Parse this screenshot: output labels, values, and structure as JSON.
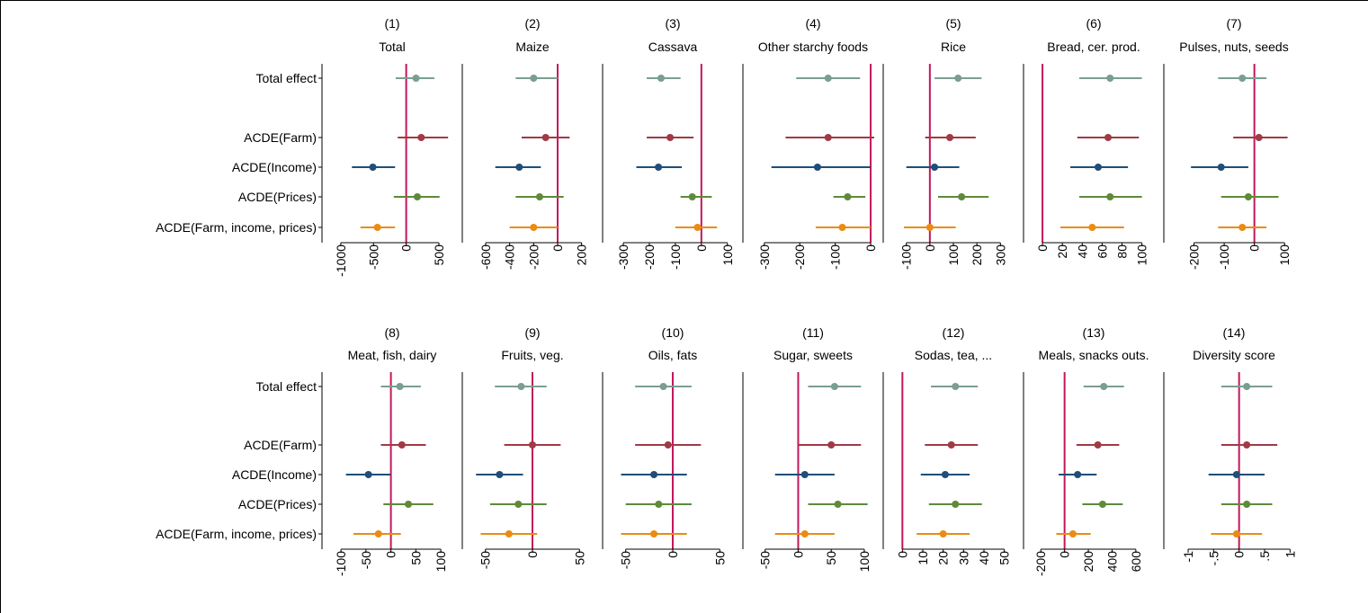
{
  "caption": "",
  "colors": {
    "zero_line": "#c2185b",
    "axis": "#000000",
    "Total effect": "#7a9e90",
    "ACDE(Farm)": "#a03a46",
    "ACDE(Income)": "#1f4e79",
    "ACDE(Prices)": "#5e8a3a",
    "ACDE(Farm, income, prices)": "#ea8c13"
  },
  "chart_data": {
    "type": "scatter",
    "subtype": "coefficient plot with confidence intervals",
    "row_labels": [
      "Total effect",
      "ACDE(Farm)",
      "ACDE(Income)",
      "ACDE(Prices)",
      "ACDE(Farm, income, prices)"
    ],
    "legend": "none",
    "grid": false,
    "reference_line": 0,
    "panels": [
      {
        "number": "(1)",
        "title": "Total",
        "xlim": [
          -1150,
          720
        ],
        "ticks": [
          "-1000",
          "-500",
          "0",
          "500"
        ],
        "tick_values": [
          -1000,
          -500,
          0,
          500
        ],
        "estimates": [
          150,
          230,
          -510,
          170,
          -440
        ],
        "ci_low": [
          -160,
          -130,
          -830,
          -190,
          -700
        ],
        "ci_high": [
          430,
          640,
          -170,
          510,
          -170
        ]
      },
      {
        "number": "(2)",
        "title": "Maize",
        "xlim": [
          -720,
          300
        ],
        "ticks": [
          "-600",
          "-400",
          "-200",
          "0",
          "200"
        ],
        "tick_values": [
          -600,
          -400,
          -200,
          0,
          200
        ],
        "estimates": [
          -200,
          -100,
          -320,
          -150,
          -200
        ],
        "ci_low": [
          -350,
          -300,
          -520,
          -350,
          -400
        ],
        "ci_high": [
          0,
          100,
          -140,
          50,
          0
        ]
      },
      {
        "number": "(3)",
        "title": "Cassava",
        "xlim": [
          -345,
          125
        ],
        "ticks": [
          "-300",
          "-200",
          "-100",
          "0",
          "100"
        ],
        "tick_values": [
          -300,
          -200,
          -100,
          0,
          100
        ],
        "estimates": [
          -155,
          -120,
          -165,
          -35,
          -15
        ],
        "ci_low": [
          -210,
          -210,
          -250,
          -80,
          -100
        ],
        "ci_high": [
          -80,
          -30,
          -75,
          40,
          60
        ]
      },
      {
        "number": "(4)",
        "title": "Other starchy foods",
        "xlim": [
          -335,
          10
        ],
        "ticks": [
          "-300",
          "-200",
          "-100",
          "0"
        ],
        "tick_values": [
          -300,
          -200,
          -100,
          0
        ],
        "estimates": [
          -120,
          -120,
          -150,
          -65,
          -80
        ],
        "ci_low": [
          -210,
          -240,
          -280,
          -105,
          -155
        ],
        "ci_high": [
          -30,
          10,
          0,
          -15,
          0
        ]
      },
      {
        "number": "(5)",
        "title": "Rice",
        "xlim": [
          -160,
          360
        ],
        "ticks": [
          "-100",
          "0",
          "100",
          "200",
          "300"
        ],
        "tick_values": [
          -100,
          0,
          100,
          200,
          300
        ],
        "estimates": [
          120,
          85,
          20,
          135,
          0
        ],
        "ci_low": [
          20,
          -20,
          -100,
          35,
          -110
        ],
        "ci_high": [
          220,
          195,
          125,
          250,
          110
        ]
      },
      {
        "number": "(6)",
        "title": "Bread, cer. prod.",
        "xlim": [
          -10,
          113
        ],
        "ticks": [
          "0",
          "20",
          "40",
          "60",
          "80",
          "100"
        ],
        "tick_values": [
          0,
          20,
          40,
          60,
          80,
          100
        ],
        "estimates": [
          68,
          66,
          56,
          68,
          50
        ],
        "ci_low": [
          37,
          35,
          28,
          37,
          18
        ],
        "ci_high": [
          100,
          97,
          86,
          100,
          82
        ]
      },
      {
        "number": "(7)",
        "title": "Pulses, nuts, seeds",
        "xlim": [
          -270,
          135
        ],
        "ticks": [
          "-200",
          "-100",
          "0",
          "100"
        ],
        "tick_values": [
          -200,
          -100,
          0,
          100
        ],
        "estimates": [
          -40,
          15,
          -110,
          -20,
          -40
        ],
        "ci_low": [
          -120,
          -70,
          -210,
          -110,
          -120
        ],
        "ci_high": [
          40,
          110,
          -20,
          80,
          40
        ]
      },
      {
        "number": "(8)",
        "title": "Meat, fish, dairy",
        "xlim": [
          -120,
          125
        ],
        "ticks": [
          "-100",
          "-50",
          "0",
          "50",
          "100"
        ],
        "tick_values": [
          -100,
          -50,
          0,
          50,
          100
        ],
        "estimates": [
          18,
          22,
          -45,
          35,
          -25
        ],
        "ci_low": [
          -20,
          -20,
          -90,
          -15,
          -75
        ],
        "ci_high": [
          60,
          70,
          0,
          85,
          20
        ]
      },
      {
        "number": "(9)",
        "title": "Fruits, veg.",
        "xlim": [
          -65,
          65
        ],
        "ticks": [
          "-50",
          "0",
          "50"
        ],
        "tick_values": [
          -50,
          0,
          50
        ],
        "estimates": [
          -12,
          0,
          -35,
          -15,
          -25
        ],
        "ci_low": [
          -40,
          -30,
          -60,
          -45,
          -55
        ],
        "ci_high": [
          15,
          30,
          -10,
          15,
          5
        ]
      },
      {
        "number": "(10)",
        "title": "Oils, fats",
        "xlim": [
          -65,
          65
        ],
        "ticks": [
          "-50",
          "0",
          "50"
        ],
        "tick_values": [
          -50,
          0,
          50
        ],
        "estimates": [
          -10,
          -5,
          -20,
          -15,
          -20
        ],
        "ci_low": [
          -40,
          -40,
          -55,
          -50,
          -55
        ],
        "ci_high": [
          20,
          30,
          15,
          20,
          15
        ]
      },
      {
        "number": "(11)",
        "title": "Sugar, sweets",
        "xlim": [
          -70,
          115
        ],
        "ticks": [
          "-50",
          "0",
          "50",
          "100"
        ],
        "tick_values": [
          -50,
          0,
          50,
          100
        ],
        "estimates": [
          55,
          50,
          10,
          60,
          10
        ],
        "ci_low": [
          15,
          0,
          -35,
          15,
          -35
        ],
        "ci_high": [
          95,
          95,
          55,
          105,
          55
        ]
      },
      {
        "number": "(12)",
        "title": "Sodas, tea, ...",
        "xlim": [
          -5,
          55
        ],
        "ticks": [
          "0",
          "10",
          "20",
          "30",
          "40",
          "50"
        ],
        "tick_values": [
          0,
          10,
          20,
          30,
          40,
          50
        ],
        "estimates": [
          26,
          24,
          21,
          26,
          20
        ],
        "ci_low": [
          14,
          11,
          9,
          13,
          7
        ],
        "ci_high": [
          37,
          37,
          33,
          39,
          33
        ]
      },
      {
        "number": "(13)",
        "title": "Meals, snacks outs.",
        "xlim": [
          -270,
          760
        ],
        "ticks": [
          "-200",
          "0",
          "200",
          "400",
          "600"
        ],
        "tick_values": [
          -200,
          0,
          200,
          400,
          600
        ],
        "estimates": [
          330,
          280,
          110,
          320,
          70
        ],
        "ci_low": [
          160,
          100,
          -50,
          150,
          -70
        ],
        "ci_high": [
          500,
          460,
          270,
          490,
          220
        ]
      },
      {
        "number": "(14)",
        "title": "Diversity score",
        "xlim": [
          -1.3,
          1.1
        ],
        "ticks": [
          "-1",
          "-.5",
          "0",
          ".5",
          "1"
        ],
        "tick_values": [
          -1,
          -0.5,
          0,
          0.5,
          1
        ],
        "estimates": [
          0.15,
          0.15,
          -0.05,
          0.15,
          -0.05
        ],
        "ci_low": [
          -0.35,
          -0.35,
          -0.6,
          -0.35,
          -0.55
        ],
        "ci_high": [
          0.65,
          0.75,
          0.5,
          0.65,
          0.45
        ]
      }
    ]
  }
}
